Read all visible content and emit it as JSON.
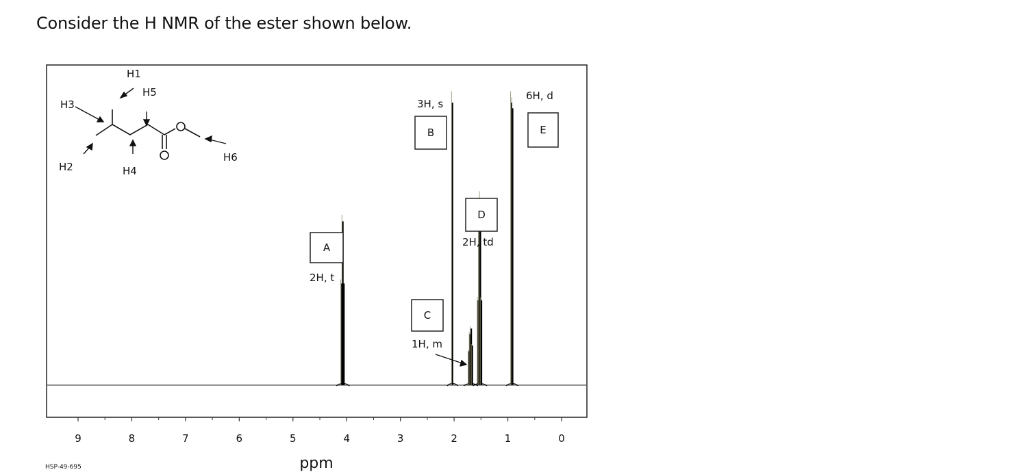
{
  "question": "Consider the H NMR of the ester shown below.",
  "chart_data": {
    "type": "line",
    "title": "",
    "xlabel": "ppm",
    "ylabel": "",
    "xlim": [
      9.5,
      -0.5
    ],
    "x_reversed": true,
    "x_ticks": [
      9,
      8,
      7,
      6,
      5,
      4,
      3,
      2,
      1,
      0
    ],
    "grid": false,
    "spectrum_id": "HSP-49-695",
    "series": [
      {
        "peaks": [
          {
            "label": "A",
            "shift": 4.07,
            "multiplicity": "2H, t",
            "lines": [
              [
                4.05,
                0.36
              ],
              [
                4.07,
                0.58
              ],
              [
                4.09,
                0.36
              ]
            ]
          },
          {
            "label": "B",
            "shift": 2.03,
            "multiplicity": "3H, s",
            "lines": [
              [
                2.03,
                1.0
              ]
            ]
          },
          {
            "label": "C",
            "shift": 1.69,
            "multiplicity": "1H, m",
            "lines": [
              [
                1.72,
                0.12
              ],
              [
                1.7,
                0.18
              ],
              [
                1.68,
                0.2
              ],
              [
                1.66,
                0.14
              ]
            ]
          },
          {
            "label": "D",
            "shift": 1.52,
            "multiplicity": "2H, td",
            "lines": [
              [
                1.55,
                0.3
              ],
              [
                1.53,
                0.6
              ],
              [
                1.51,
                0.66
              ],
              [
                1.49,
                0.3
              ]
            ]
          },
          {
            "label": "E",
            "shift": 0.92,
            "multiplicity": "6H, d",
            "lines": [
              [
                0.93,
                1.0
              ],
              [
                0.91,
                0.98
              ]
            ]
          }
        ]
      }
    ],
    "structure_labels": [
      "H1",
      "H2",
      "H3",
      "H4",
      "H5",
      "H6"
    ],
    "annotations": [
      {
        "box": "A",
        "text": "2H, t"
      },
      {
        "box": "B",
        "text": "3H, s"
      },
      {
        "box": "C",
        "text": "1H, m"
      },
      {
        "box": "D",
        "text": "2H, td"
      },
      {
        "box": "E",
        "text": "6H, d"
      }
    ]
  }
}
